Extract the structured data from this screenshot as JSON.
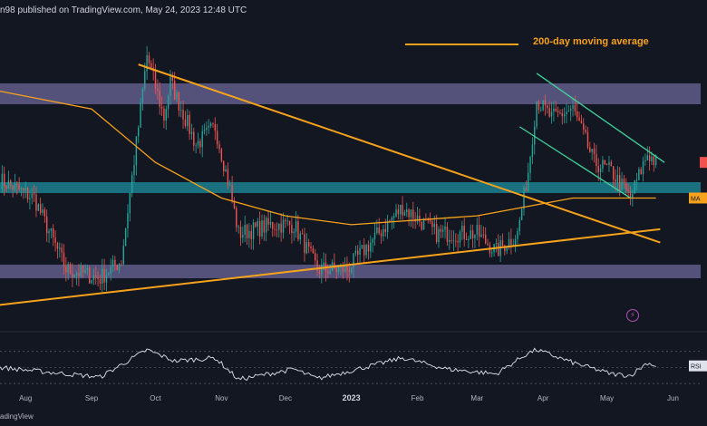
{
  "header": {
    "text": "n98 published on TradingView.com, May 24, 2023 12:48 UTC"
  },
  "legend": {
    "ma_label": "200-day moving average",
    "ma_color": "#f7a21b"
  },
  "footer": {
    "text": "adingView"
  },
  "icons": {
    "flash": "flash-icon"
  },
  "colors": {
    "background": "#131722",
    "resistance_zone": "#8b83c4",
    "support_zone": "#1e8f9e",
    "ma": "#f7a21b",
    "channel": "#3fd39b",
    "candle_up": "#26a69a",
    "candle_down": "#ef5350",
    "rsi": "#e0e3eb"
  },
  "chart_data": [
    {
      "type": "candlestick",
      "x_axis": {
        "ticks": [
          "Aug",
          "Sep",
          "Oct",
          "Nov",
          "Dec",
          "2023",
          "Feb",
          "Mar",
          "Apr",
          "May",
          "Jun"
        ],
        "bold_ticks": [
          "2023"
        ]
      },
      "axis_tags": [
        {
          "label": "MA",
          "color": "#f7a21b"
        },
        {
          "label": "",
          "color": "#ef5350"
        }
      ],
      "zones": [
        {
          "name": "resistance",
          "color": "#8b83c4"
        },
        {
          "name": "support",
          "color": "#1e8f9e"
        },
        {
          "name": "lower",
          "color": "#8b83c4"
        }
      ],
      "keypoints": [
        {
          "date": "2022-07-20",
          "close": 0.44
        },
        {
          "date": "2022-08-05",
          "close": 0.42
        },
        {
          "date": "2022-08-20",
          "close": 0.34
        },
        {
          "date": "2022-09-05",
          "close": 0.33
        },
        {
          "date": "2022-09-15",
          "close": 0.35
        },
        {
          "date": "2022-09-23",
          "close": 0.5
        },
        {
          "date": "2022-09-27",
          "close": 0.58
        },
        {
          "date": "2022-10-05",
          "close": 0.51
        },
        {
          "date": "2022-10-08",
          "close": 0.55
        },
        {
          "date": "2022-10-20",
          "close": 0.48
        },
        {
          "date": "2022-10-29",
          "close": 0.5
        },
        {
          "date": "2022-11-05",
          "close": 0.43
        },
        {
          "date": "2022-11-09",
          "close": 0.38
        },
        {
          "date": "2022-11-25",
          "close": 0.39
        },
        {
          "date": "2022-12-05",
          "close": 0.39
        },
        {
          "date": "2022-12-16",
          "close": 0.34
        },
        {
          "date": "2022-12-30",
          "close": 0.34
        },
        {
          "date": "2023-01-10",
          "close": 0.37
        },
        {
          "date": "2023-01-25",
          "close": 0.41
        },
        {
          "date": "2023-02-10",
          "close": 0.38
        },
        {
          "date": "2023-03-01",
          "close": 0.38
        },
        {
          "date": "2023-03-10",
          "close": 0.36
        },
        {
          "date": "2023-03-20",
          "close": 0.38
        },
        {
          "date": "2023-03-25",
          "close": 0.45
        },
        {
          "date": "2023-03-29",
          "close": 0.53
        },
        {
          "date": "2023-04-05",
          "close": 0.51
        },
        {
          "date": "2023-04-15",
          "close": 0.52
        },
        {
          "date": "2023-04-25",
          "close": 0.46
        },
        {
          "date": "2023-05-03",
          "close": 0.45
        },
        {
          "date": "2023-05-12",
          "close": 0.42
        },
        {
          "date": "2023-05-20",
          "close": 0.47
        },
        {
          "date": "2023-05-24",
          "close": 0.46
        }
      ],
      "ma200": [
        {
          "date": "2022-07-20",
          "value": 0.54
        },
        {
          "date": "2022-09-01",
          "value": 0.52
        },
        {
          "date": "2022-10-01",
          "value": 0.46
        },
        {
          "date": "2022-11-01",
          "value": 0.42
        },
        {
          "date": "2022-12-01",
          "value": 0.4
        },
        {
          "date": "2023-01-01",
          "value": 0.39
        },
        {
          "date": "2023-03-01",
          "value": 0.4
        },
        {
          "date": "2023-04-15",
          "value": 0.42
        },
        {
          "date": "2023-05-24",
          "value": 0.42
        }
      ],
      "lines": [
        {
          "name": "descending-trendline",
          "from": {
            "date": "2022-09-23",
            "value": 0.57
          },
          "to": {
            "date": "2023-05-26",
            "value": 0.37
          }
        },
        {
          "name": "ascending-trendline",
          "from": {
            "date": "2022-07-20",
            "value": 0.3
          },
          "to": {
            "date": "2023-05-26",
            "value": 0.385
          }
        },
        {
          "name": "channel-upper",
          "from": {
            "date": "2023-03-29",
            "value": 0.56
          },
          "to": {
            "date": "2023-05-28",
            "value": 0.46
          }
        },
        {
          "name": "channel-lower",
          "from": {
            "date": "2023-03-21",
            "value": 0.5
          },
          "to": {
            "date": "2023-05-12",
            "value": 0.42
          }
        }
      ]
    },
    {
      "type": "line",
      "name": "RSI",
      "axis_tags": [
        {
          "label": "RSI",
          "color": "#e0e3eb"
        }
      ],
      "keypoints": [
        {
          "date": "2022-07-20",
          "value": 50
        },
        {
          "date": "2022-08-20",
          "value": 42
        },
        {
          "date": "2022-09-05",
          "value": 38
        },
        {
          "date": "2022-09-27",
          "value": 72
        },
        {
          "date": "2022-10-10",
          "value": 58
        },
        {
          "date": "2022-10-29",
          "value": 62
        },
        {
          "date": "2022-11-09",
          "value": 35
        },
        {
          "date": "2022-12-05",
          "value": 48
        },
        {
          "date": "2022-12-16",
          "value": 36
        },
        {
          "date": "2023-01-10",
          "value": 52
        },
        {
          "date": "2023-01-25",
          "value": 62
        },
        {
          "date": "2023-02-15",
          "value": 48
        },
        {
          "date": "2023-03-10",
          "value": 42
        },
        {
          "date": "2023-03-25",
          "value": 68
        },
        {
          "date": "2023-03-29",
          "value": 72
        },
        {
          "date": "2023-04-15",
          "value": 56
        },
        {
          "date": "2023-05-03",
          "value": 42
        },
        {
          "date": "2023-05-12",
          "value": 40
        },
        {
          "date": "2023-05-20",
          "value": 56
        },
        {
          "date": "2023-05-24",
          "value": 52
        }
      ]
    }
  ]
}
